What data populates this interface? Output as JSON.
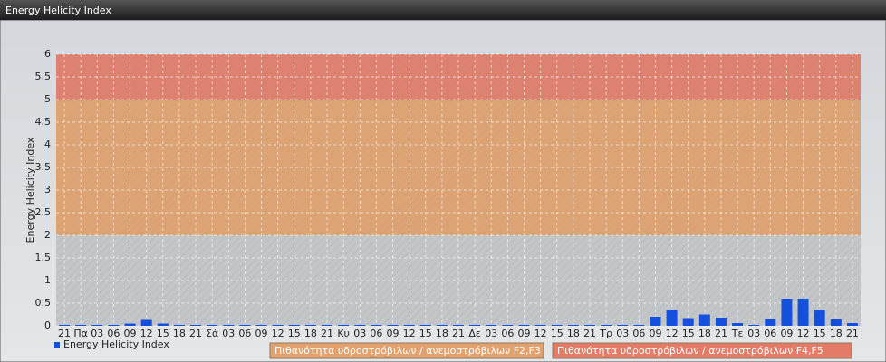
{
  "chart_data": {
    "type": "bar",
    "title": "Energy Helicity Index",
    "ylabel": "Energy Helicity Index",
    "categories": [
      "21",
      "Πα",
      "03",
      "06",
      "09",
      "12",
      "15",
      "18",
      "21",
      "Σά",
      "03",
      "06",
      "09",
      "12",
      "15",
      "18",
      "21",
      "Κυ",
      "03",
      "06",
      "09",
      "12",
      "15",
      "18",
      "21",
      "Δε",
      "03",
      "06",
      "09",
      "12",
      "15",
      "18",
      "21",
      "Τρ",
      "03",
      "06",
      "09",
      "12",
      "15",
      "18",
      "21",
      "Τε",
      "03",
      "06",
      "09",
      "12",
      "15",
      "18",
      "21"
    ],
    "series": [
      {
        "name": "Energy Helicity Index",
        "color": "#1550dc",
        "values": [
          0.02,
          0.02,
          0.02,
          0.02,
          0.05,
          0.13,
          0.05,
          0.02,
          0.02,
          0.02,
          0.02,
          0.02,
          0.02,
          0.02,
          0.02,
          0.02,
          0.02,
          0.02,
          0.02,
          0.02,
          0.02,
          0.02,
          0.02,
          0.02,
          0.02,
          0.02,
          0.02,
          0.02,
          0.02,
          0.02,
          0.02,
          0.02,
          0.02,
          0.02,
          0.02,
          0.02,
          0.2,
          0.35,
          0.17,
          0.25,
          0.18,
          0.06,
          0.02,
          0.15,
          0.6,
          0.6,
          0.35,
          0.14,
          0.06
        ]
      }
    ],
    "ylim": [
      0,
      6
    ],
    "yticks": [
      0,
      0.5,
      1,
      1.5,
      2,
      2.5,
      3,
      3.5,
      4,
      4.5,
      5,
      5.5,
      6
    ],
    "grid": true,
    "bands": [
      {
        "from": 2,
        "to": 5,
        "color": "#e29a60",
        "label": "Πιθανότητα υδροστρόβιλων / ανεμοστρόβιλων F2,F3"
      },
      {
        "from": 5,
        "to": 6,
        "color": "#e4705a",
        "label": "Πιθανότητα υδροστρόβιλων / ανεμοστρόβιλων F4,F5"
      }
    ]
  }
}
